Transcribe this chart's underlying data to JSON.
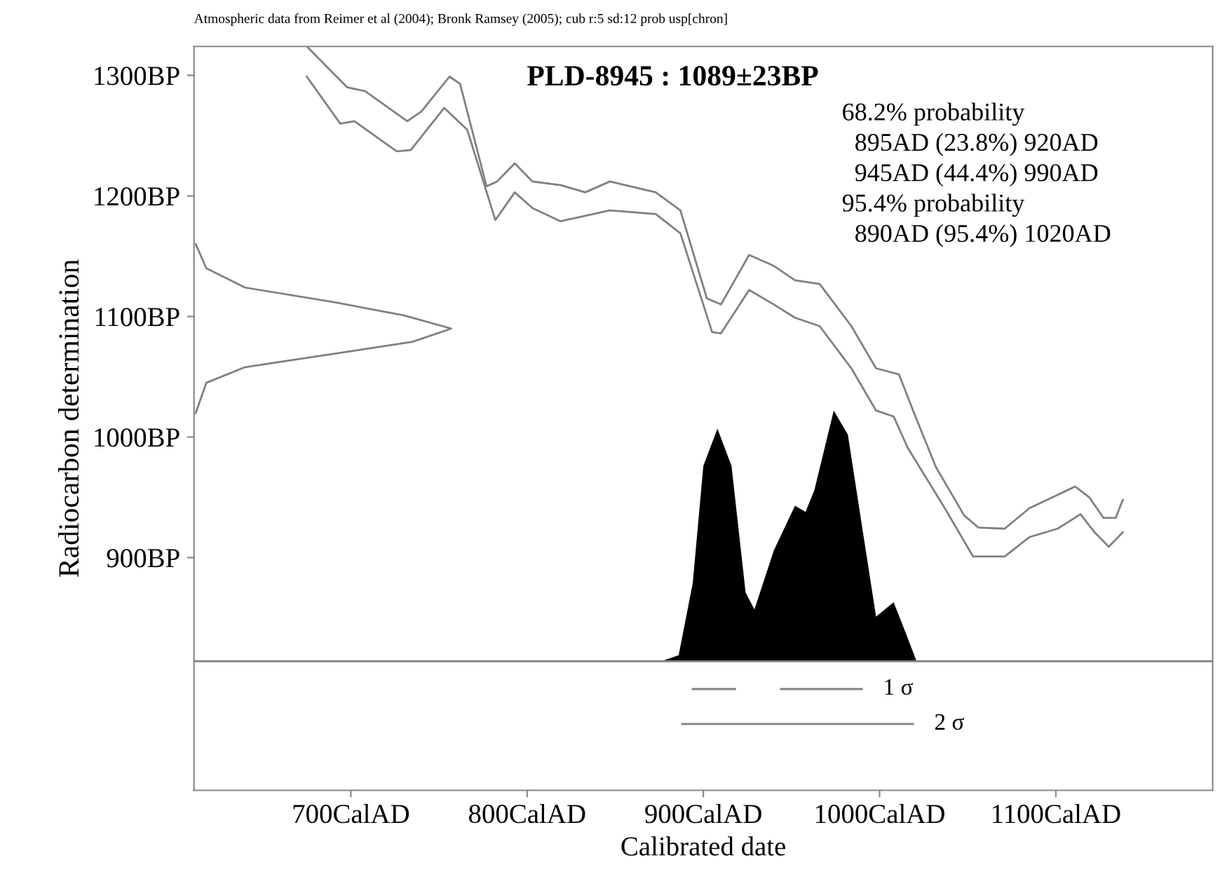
{
  "chart_data": {
    "type": "line",
    "title": "PLD-8945 : 1089±23BP",
    "xlabel": "Calibrated date",
    "ylabel": "Radiocarbon determination",
    "xlim": [
      611,
      1189
    ],
    "ylim": [
      707,
      1324
    ],
    "xticks": [
      {
        "value": 700,
        "label": "700CalAD"
      },
      {
        "value": 800,
        "label": "800CalAD"
      },
      {
        "value": 900,
        "label": "900CalAD"
      },
      {
        "value": 1000,
        "label": "1000CalAD"
      },
      {
        "value": 1100,
        "label": "1100CalAD"
      }
    ],
    "yticks": [
      {
        "value": 900,
        "label": "900BP"
      },
      {
        "value": 1000,
        "label": "1000BP"
      },
      {
        "value": 1100,
        "label": "1100BP"
      },
      {
        "value": 1200,
        "label": "1200BP"
      },
      {
        "value": 1300,
        "label": "1300BP"
      }
    ],
    "grid": false,
    "legend": false,
    "annotations": [
      "Atmospheric data from Reimer et al (2004); Bronk Ramsey (2005); cub r:5 sd:12 prob usp[chron]",
      "68.2% probability",
      "  895AD (23.8%) 920AD",
      "  945AD (44.4%) 990AD",
      "95.4% probability",
      "  890AD (95.4%) 1020AD"
    ],
    "ref_lines": [
      {
        "axis": "y",
        "value": 814,
        "color": "#808080"
      }
    ],
    "series": [
      {
        "color": "#808080",
        "x": [
          675,
          698,
          708,
          732,
          740,
          756,
          762,
          777,
          783,
          793,
          803,
          819,
          833,
          847,
          873,
          887,
          902,
          910,
          926,
          940,
          952,
          966,
          984,
          998,
          1011,
          1019,
          1032,
          1048,
          1056,
          1071,
          1085,
          1101,
          1111,
          1119,
          1127,
          1134,
          1138
        ],
        "values": [
          1324,
          1290,
          1287,
          1262,
          1270,
          1299,
          1293,
          1208,
          1212,
          1227,
          1212,
          1209,
          1203,
          1212,
          1203,
          1188,
          1115,
          1110,
          1151,
          1142,
          1130,
          1127,
          1092,
          1057,
          1052,
          1022,
          975,
          935,
          925,
          924,
          941,
          952,
          959,
          950,
          933,
          933,
          948
        ]
      },
      {
        "color": "#808080",
        "x": [
          675,
          694,
          702,
          726,
          734,
          753,
          766,
          782,
          793,
          803,
          819,
          847,
          873,
          887,
          905,
          910,
          926,
          940,
          952,
          966,
          984,
          998,
          1008,
          1016,
          1037,
          1053,
          1071,
          1085,
          1101,
          1114,
          1122,
          1130,
          1138
        ],
        "values": [
          1299,
          1260,
          1262,
          1237,
          1238,
          1273,
          1255,
          1180,
          1203,
          1190,
          1179,
          1188,
          1185,
          1169,
          1087,
          1086,
          1122,
          1110,
          1099,
          1092,
          1057,
          1022,
          1017,
          991,
          941,
          901,
          901,
          917,
          924,
          936,
          921,
          909,
          921
        ]
      },
      {
        "color": "#808080",
        "x": [
          612,
          618,
          640,
          690,
          730,
          757,
          735,
          690,
          640,
          618,
          612
        ],
        "values": [
          1160,
          1140,
          1124,
          1112,
          1101,
          1090,
          1079,
          1069,
          1058,
          1045,
          1020
        ]
      },
      {
        "type": "area",
        "color": "#000000",
        "x": [
          876,
          886,
          894,
          900,
          908,
          916,
          924,
          929,
          940,
          952,
          958,
          963,
          974,
          982,
          991,
          998,
          1008,
          1015,
          1021
        ],
        "values": [
          814,
          819,
          879,
          976,
          1007,
          976,
          871,
          857,
          906,
          943,
          938,
          956,
          1022,
          1002,
          917,
          851,
          863,
          837,
          814
        ]
      },
      {
        "name": "1 σ",
        "color": "#808080",
        "x": [
          894,
          918,
          931,
          944,
          990
        ],
        "values": [
          791,
          791,
          null,
          791,
          791
        ]
      },
      {
        "name": "2 σ",
        "color": "#808080",
        "x": [
          888,
          1019
        ],
        "values": [
          762,
          762
        ]
      }
    ]
  }
}
